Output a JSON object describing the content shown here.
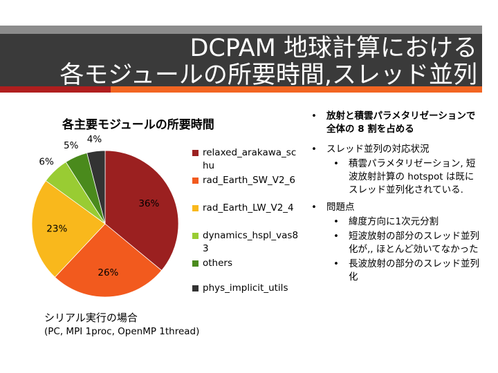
{
  "slide": {
    "title_line1": "DCPAM 地球計算における",
    "title_line2": "各モジュールの所要時間,スレッド並列"
  },
  "chart_data": {
    "type": "pie",
    "title": "各主要モジュールの所要時間",
    "slices": [
      {
        "label": "relaxed_arakawa_schu",
        "value": 36,
        "display": "36%",
        "color": "#9b2020"
      },
      {
        "label": "rad_Earth_SW_V2_6",
        "value": 26,
        "display": "26%",
        "color": "#f25a1e"
      },
      {
        "label": "rad_Earth_LW_V2_4",
        "value": 23,
        "display": "23%",
        "color": "#f9b81c"
      },
      {
        "label": "dynamics_hspl_vas83",
        "value": 6,
        "display": "6%",
        "color": "#99cc33"
      },
      {
        "label": "others",
        "value": 5,
        "display": "5%",
        "color": "#4a8a1c"
      },
      {
        "label": "phys_implicit_utils",
        "value": 4,
        "display": "4%",
        "color": "#333333"
      }
    ],
    "legend_position": "right"
  },
  "captions": {
    "line1": "シリアル実行の場合",
    "line2": "(PC, MPI 1proc, OpenMP 1thread)"
  },
  "bullets": {
    "b1": "放射と積雲パラメタリゼーションで全体の 8 割を占める",
    "b2": "スレッド並列の対応状況",
    "b2_1": "積雲パラメタリゼーション, 短波放射計算の hotspot は既にスレッド並列化されている.",
    "b3": "問題点",
    "b3_1": "緯度方向に1次元分割",
    "b3_2": "短波放射の部分のスレッド並列化が,, ほとんど効いてなかった",
    "b3_3": "長波放射の部分のスレッド並列化"
  }
}
